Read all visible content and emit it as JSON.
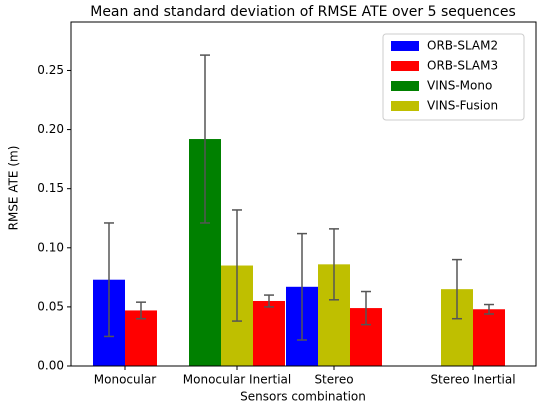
{
  "chart_data": {
    "type": "bar",
    "title": "Mean and standard deviation of RMSE ATE over 5 sequences",
    "xlabel": "Sensors combination",
    "ylabel": "RMSE ATE (m)",
    "categories": [
      "Monocular",
      "Monocular Inertial",
      "Stereo",
      "Stereo Inertial"
    ],
    "series": [
      {
        "name": "ORB-SLAM2",
        "color": "#0000ff",
        "values": [
          0.073,
          null,
          0.067,
          null
        ],
        "errors": [
          0.048,
          null,
          0.045,
          null
        ]
      },
      {
        "name": "VINS-Mono",
        "color": "#008000",
        "values": [
          null,
          0.192,
          null,
          null
        ],
        "errors": [
          null,
          0.071,
          null,
          null
        ]
      },
      {
        "name": "VINS-Fusion",
        "color": "#bfbf00",
        "values": [
          null,
          0.085,
          0.086,
          0.065
        ],
        "errors": [
          null,
          0.047,
          0.03,
          0.025
        ]
      },
      {
        "name": "ORB-SLAM3",
        "color": "#ff0000",
        "values": [
          0.047,
          0.055,
          0.049,
          0.048
        ],
        "errors": [
          0.007,
          0.005,
          0.014,
          0.004
        ]
      }
    ],
    "legend_order": [
      0,
      3,
      1,
      2
    ],
    "ylim": [
      0,
      0.291
    ],
    "yticks": [
      {
        "value": 0,
        "label": "0.00"
      },
      {
        "value": 0.05,
        "label": "0.05"
      },
      {
        "value": 0.1,
        "label": "0.10"
      },
      {
        "value": 0.15,
        "label": "0.15"
      },
      {
        "value": 0.2,
        "label": "0.20"
      },
      {
        "value": 0.25,
        "label": "0.25"
      }
    ],
    "legend": "upper right",
    "error_color": "#555555"
  }
}
